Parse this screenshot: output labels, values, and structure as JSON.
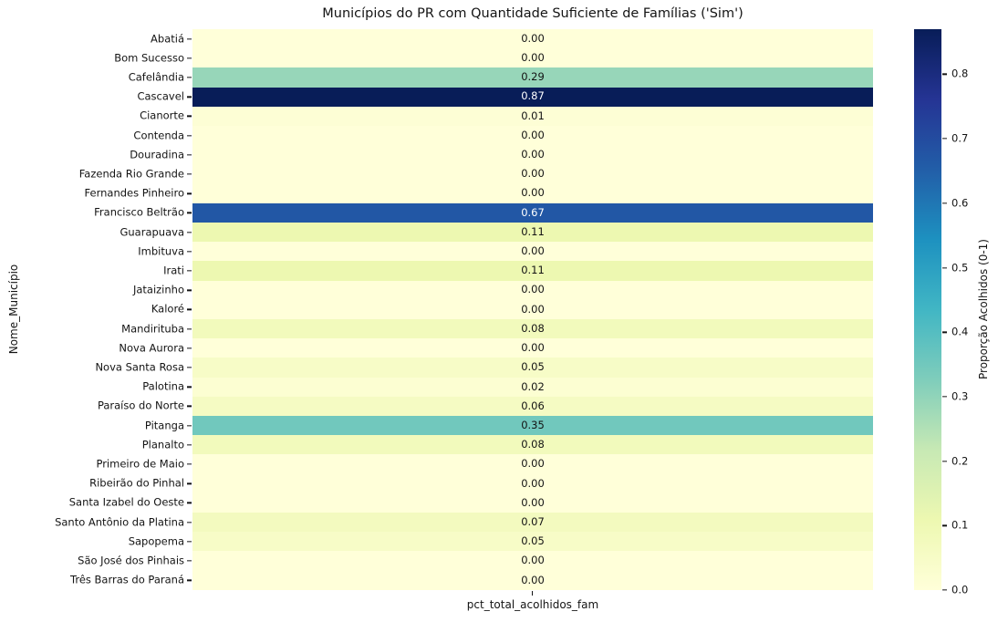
{
  "chart_data": {
    "type": "heatmap",
    "title": "Municípios do PR com Quantidade Suficiente de Famílias ('Sim')",
    "ylabel": "Nome_Município",
    "xlabel": "",
    "columns": [
      "pct_total_acolhidos_fam"
    ],
    "categories": [
      "Abatiá",
      "Bom Sucesso",
      "Cafelândia",
      "Cascavel",
      "Cianorte",
      "Contenda",
      "Douradina",
      "Fazenda Rio Grande",
      "Fernandes Pinheiro",
      "Francisco Beltrão",
      "Guarapuava",
      "Imbituva",
      "Irati",
      "Jataizinho",
      "Kaloré",
      "Mandirituba",
      "Nova Aurora",
      "Nova Santa Rosa",
      "Palotina",
      "Paraíso do Norte",
      "Pitanga",
      "Planalto",
      "Primeiro de Maio",
      "Ribeirão do Pinhal",
      "Santa Izabel do Oeste",
      "Santo Antônio da Platina",
      "Sapopema",
      "São José dos Pinhais",
      "Três Barras do Paraná"
    ],
    "values": [
      0.0,
      0.0,
      0.29,
      0.87,
      0.01,
      0.0,
      0.0,
      0.0,
      0.0,
      0.67,
      0.11,
      0.0,
      0.11,
      0.0,
      0.0,
      0.08,
      0.0,
      0.05,
      0.02,
      0.06,
      0.35,
      0.08,
      0.0,
      0.0,
      0.0,
      0.07,
      0.05,
      0.0,
      0.0
    ],
    "value_format": "2-decimals",
    "vmin": 0.0,
    "vmax": 0.87,
    "colormap": "YlGnBu",
    "colormap_anchors": [
      "#ffffd9",
      "#edf8b1",
      "#c7e9b4",
      "#7fcdbb",
      "#41b6c4",
      "#1d91c0",
      "#225ea8",
      "#253494",
      "#081d58"
    ],
    "annotation_color_dark": "#141414",
    "annotation_color_light": "#ffffff",
    "grid": false,
    "colorbar": {
      "label": "Proporção Acolhidos (0-1)",
      "ticks": [
        0.0,
        0.1,
        0.2,
        0.3,
        0.4,
        0.5,
        0.6,
        0.7,
        0.8
      ],
      "position": "right"
    }
  }
}
